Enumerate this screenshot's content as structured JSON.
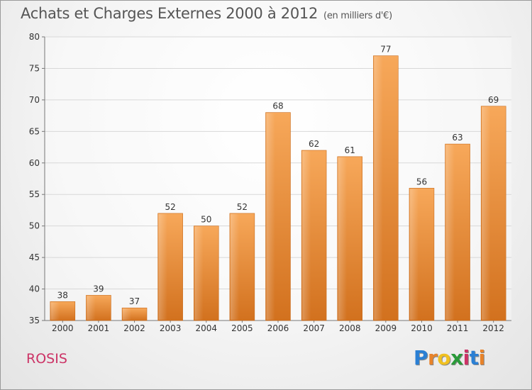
{
  "title": "Achats et Charges Externes 2000 à 2012",
  "unit": "(en milliers d'€)",
  "commune": "ROSIS",
  "brand": {
    "text": "Proxiti",
    "letter_colors": [
      "#2a7fd4",
      "#e8832a",
      "#f0c020",
      "#2a9a3a",
      "#cc3366",
      "#2a7fd4",
      "#e8832a"
    ]
  },
  "chart_data": {
    "type": "bar",
    "categories": [
      "2000",
      "2001",
      "2002",
      "2003",
      "2004",
      "2005",
      "2006",
      "2007",
      "2008",
      "2009",
      "2010",
      "2011",
      "2012"
    ],
    "values": [
      38,
      39,
      37,
      52,
      50,
      52,
      68,
      62,
      61,
      77,
      56,
      63,
      69
    ],
    "ylim": [
      35,
      80
    ],
    "yticks": [
      35,
      40,
      45,
      50,
      55,
      60,
      65,
      70,
      75,
      80
    ],
    "grid": true,
    "bar_color": "#f0a050"
  }
}
